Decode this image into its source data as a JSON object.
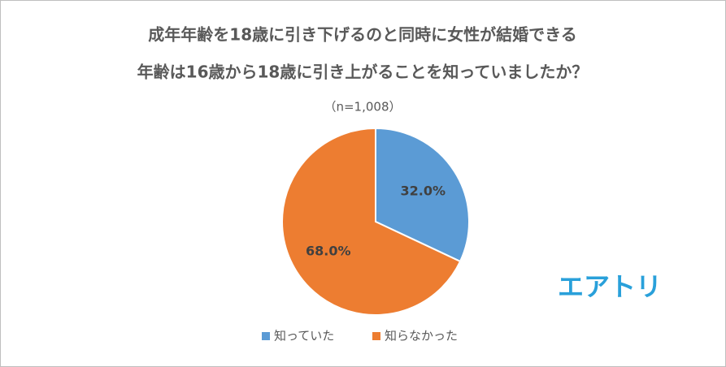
{
  "chart_data": {
    "type": "pie",
    "title": [
      "成年年齢を18歳に引き下げるのと同時に女性が結婚できる",
      "年齢は16歳から18歳に引き上がることを知っていましたか？"
    ],
    "subtitle": "（n=1,008）",
    "categories": [
      "知っていた",
      "知らなかった"
    ],
    "values": [
      32.0,
      68.0
    ],
    "value_labels": [
      "32.0%",
      "68.0%"
    ],
    "colors": [
      "#5b9bd5",
      "#ed7d31"
    ],
    "legend": "bottom",
    "logo": "エアトリ"
  }
}
